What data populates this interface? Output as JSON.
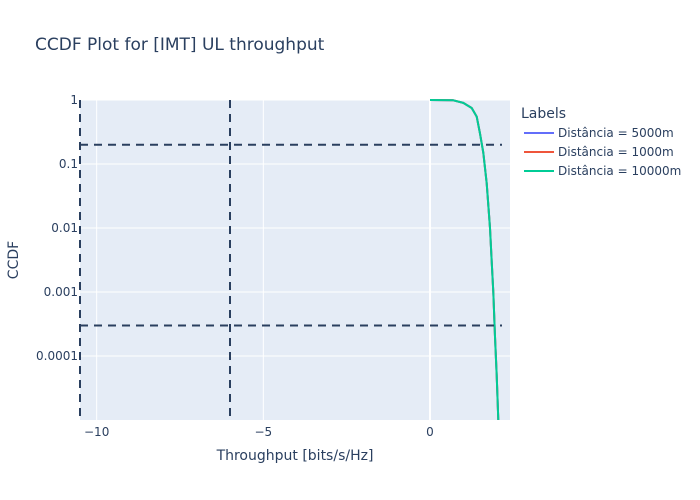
{
  "chart_data": {
    "type": "line",
    "title": "CCDF Plot for [IMT] UL throughput",
    "xlabel": "Throughput [bits/s/Hz]",
    "ylabel": "CCDF",
    "xlim": [
      -10.5,
      2.4
    ],
    "ylim": [
      1e-05,
      1
    ],
    "yscale": "log",
    "x_ticks": [
      {
        "value": -10,
        "label": "−10"
      },
      {
        "value": -5,
        "label": "−5"
      },
      {
        "value": 0,
        "label": "0"
      }
    ],
    "y_ticks": [
      {
        "value": 1,
        "label": "1"
      },
      {
        "value": 0.1,
        "label": "0.1"
      },
      {
        "value": 0.01,
        "label": "0.01"
      },
      {
        "value": 0.001,
        "label": "0.001"
      },
      {
        "value": 0.0001,
        "label": "0.0001"
      }
    ],
    "grid": true,
    "legend": {
      "title": "Labels",
      "placement": "right"
    },
    "series": [
      {
        "name": "Distância = 5000m",
        "color": "#636efa",
        "x": [
          0,
          0.7,
          1.0,
          1.25,
          1.4,
          1.5,
          1.6,
          1.7,
          1.8,
          1.85,
          1.9,
          1.95,
          2.0,
          2.05
        ],
        "y": [
          1,
          0.99,
          0.9,
          0.75,
          0.55,
          0.3,
          0.15,
          0.05,
          0.01,
          0.003,
          0.001,
          0.0002,
          5e-05,
          1e-05
        ]
      },
      {
        "name": "Distância = 1000m",
        "color": "#ef553b",
        "x": [
          0,
          0.7,
          1.0,
          1.25,
          1.4,
          1.5,
          1.6,
          1.7,
          1.8,
          1.85,
          1.9,
          1.95,
          2.0,
          2.05
        ],
        "y": [
          1,
          0.99,
          0.9,
          0.75,
          0.55,
          0.3,
          0.15,
          0.05,
          0.01,
          0.003,
          0.001,
          0.0002,
          5e-05,
          1e-05
        ]
      },
      {
        "name": "Distância = 10000m",
        "color": "#00cc96",
        "x": [
          0,
          0.7,
          1.0,
          1.25,
          1.4,
          1.5,
          1.6,
          1.7,
          1.8,
          1.85,
          1.9,
          1.95,
          2.0,
          2.05
        ],
        "y": [
          1,
          0.99,
          0.9,
          0.75,
          0.55,
          0.3,
          0.15,
          0.05,
          0.01,
          0.003,
          0.001,
          0.0002,
          5e-05,
          1e-05
        ]
      }
    ],
    "reference_lines": {
      "color": "#2a3f5f",
      "vertical_x": [
        -10.5,
        -6
      ],
      "horizontal_y": [
        0.2,
        0.0003
      ]
    },
    "colors": {
      "plot_background": "#e5ecf6",
      "grid": "#ffffff",
      "text": "#2a3f5f"
    }
  }
}
